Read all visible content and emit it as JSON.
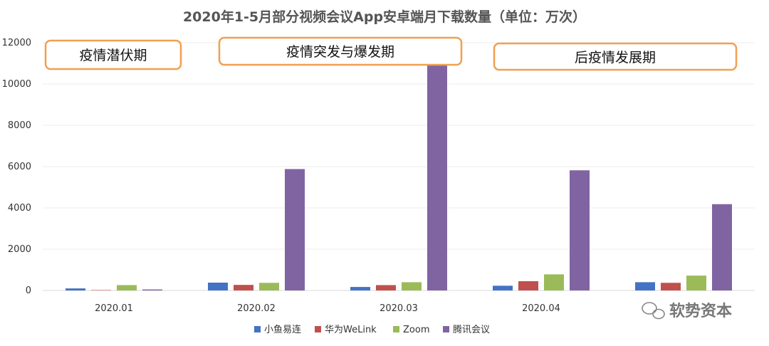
{
  "chart_data": {
    "type": "bar",
    "title": "2020年1-5月部分视频会议App安卓端月下载数量（单位：万次）",
    "categories": [
      "2020.01",
      "2020.02",
      "2020.03",
      "2020.04",
      ""
    ],
    "yticks": [
      "0",
      "2000",
      "4000",
      "6000",
      "8000",
      "10000",
      "12000"
    ],
    "ylim": [
      0,
      12000
    ],
    "legend_position": "bottom",
    "series": [
      {
        "name": "小鱼易连",
        "color": "#4472C4",
        "values": [
          100,
          380,
          170,
          230,
          400
        ]
      },
      {
        "name": "华为WeLink",
        "color": "#C0504D",
        "values": [
          20,
          270,
          260,
          450,
          370
        ]
      },
      {
        "name": "Zoom",
        "color": "#9BBB59",
        "values": [
          260,
          370,
          400,
          780,
          720
        ]
      },
      {
        "name": "腾讯会议",
        "color": "#8064A2",
        "values": [
          50,
          5880,
          11200,
          5820,
          4180
        ]
      }
    ],
    "annotations": [
      "疫情潜伏期",
      "疫情突发与爆发期",
      "后疫情发展期"
    ],
    "annotation_border_color": "#F0A050"
  },
  "watermark": {
    "text": "软势资本"
  }
}
